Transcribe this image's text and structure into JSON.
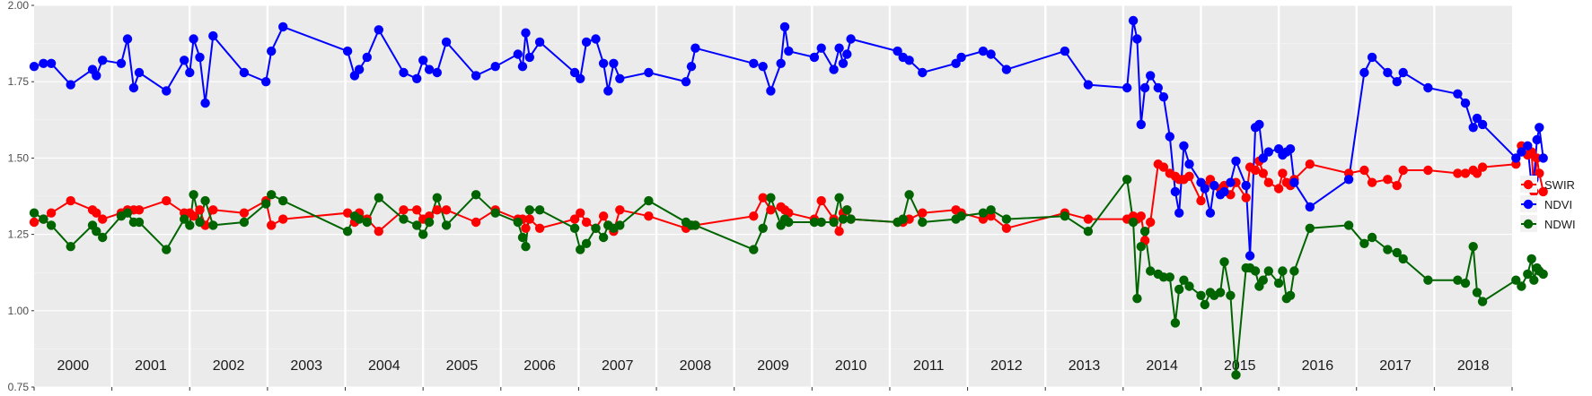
{
  "chart_data": {
    "type": "line",
    "ylim": [
      0.75,
      2.0
    ],
    "y_ticks": [
      "0.75",
      "1.00",
      "1.25",
      "1.50",
      "1.75",
      "2.00"
    ],
    "years": [
      "2000",
      "2001",
      "2002",
      "2003",
      "2004",
      "2005",
      "2006",
      "2007",
      "2008",
      "2009",
      "2010",
      "2011",
      "2012",
      "2013",
      "2014",
      "2015",
      "2016",
      "2017",
      "2018"
    ],
    "x_range": [
      2000.0,
      2019.0
    ],
    "grid": true,
    "legend_position": "right",
    "series": [
      {
        "name": "SWIR",
        "color": "#ff0000",
        "x": [
          2000.0,
          2000.12,
          2000.22,
          2000.47,
          2000.75,
          2000.8,
          2000.88,
          2001.12,
          2001.2,
          2001.28,
          2001.35,
          2001.7,
          2001.93,
          2002.0,
          2002.05,
          2002.13,
          2002.2,
          2002.3,
          2002.7,
          2002.98,
          2003.05,
          2003.2,
          2004.03,
          2004.12,
          2004.18,
          2004.28,
          2004.43,
          2004.75,
          2004.92,
          2005.0,
          2005.08,
          2005.18,
          2005.3,
          2005.68,
          2005.93,
          2006.22,
          2006.28,
          2006.32,
          2006.37,
          2006.5,
          2006.95,
          2007.02,
          2007.1,
          2007.22,
          2007.32,
          2007.38,
          2007.45,
          2007.53,
          2007.9,
          2008.38,
          2008.45,
          2008.5,
          2009.25,
          2009.37,
          2009.47,
          2009.6,
          2009.65,
          2009.7,
          2010.03,
          2010.12,
          2010.28,
          2010.35,
          2010.4,
          2010.45,
          2010.5,
          2011.1,
          2011.17,
          2011.25,
          2011.42,
          2011.85,
          2011.92,
          2012.2,
          2012.3,
          2012.5,
          2013.25,
          2013.55,
          2014.05,
          2014.13,
          2014.18,
          2014.23,
          2014.28,
          2014.35,
          2014.45,
          2014.52,
          2014.6,
          2014.67,
          2014.72,
          2014.78,
          2014.85,
          2015.0,
          2015.05,
          2015.12,
          2015.17,
          2015.25,
          2015.3,
          2015.38,
          2015.45,
          2015.58,
          2015.63,
          2015.7,
          2015.75,
          2015.8,
          2015.87,
          2016.0,
          2016.05,
          2016.1,
          2016.15,
          2016.2,
          2016.4,
          2016.9,
          2017.1,
          2017.2,
          2017.4,
          2017.52,
          2017.6,
          2017.92,
          2018.3,
          2018.4,
          2018.5,
          2018.55,
          2018.62,
          2019.05,
          2019.12,
          2019.2,
          2019.25,
          2019.28,
          2019.32,
          2019.35,
          2019.4
        ],
        "y": [
          1.29,
          1.3,
          1.32,
          1.36,
          1.33,
          1.32,
          1.3,
          1.32,
          1.33,
          1.33,
          1.33,
          1.36,
          1.32,
          1.32,
          1.31,
          1.33,
          1.28,
          1.33,
          1.32,
          1.36,
          1.28,
          1.3,
          1.32,
          1.29,
          1.32,
          1.3,
          1.26,
          1.33,
          1.33,
          1.3,
          1.31,
          1.33,
          1.33,
          1.29,
          1.33,
          1.3,
          1.3,
          1.27,
          1.3,
          1.27,
          1.3,
          1.32,
          1.29,
          1.27,
          1.31,
          1.28,
          1.26,
          1.33,
          1.31,
          1.27,
          1.28,
          1.28,
          1.31,
          1.37,
          1.33,
          1.34,
          1.33,
          1.32,
          1.3,
          1.36,
          1.3,
          1.26,
          1.32,
          1.33,
          1.3,
          1.29,
          1.29,
          1.3,
          1.32,
          1.33,
          1.32,
          1.3,
          1.31,
          1.27,
          1.32,
          1.3,
          1.3,
          1.31,
          1.3,
          1.31,
          1.23,
          1.29,
          1.48,
          1.47,
          1.45,
          1.44,
          1.43,
          1.43,
          1.44,
          1.36,
          1.41,
          1.43,
          1.41,
          1.4,
          1.41,
          1.38,
          1.42,
          1.37,
          1.47,
          1.46,
          1.49,
          1.45,
          1.42,
          1.4,
          1.45,
          1.42,
          1.41,
          1.43,
          1.48,
          1.45,
          1.46,
          1.42,
          1.43,
          1.41,
          1.46,
          1.46,
          1.45,
          1.45,
          1.46,
          1.45,
          1.47,
          1.48,
          1.54,
          1.51,
          1.52,
          1.39,
          1.5,
          1.45,
          1.39
        ]
      },
      {
        "name": "NDVI",
        "color": "#0000ff",
        "x": [
          2000.0,
          2000.12,
          2000.22,
          2000.47,
          2000.75,
          2000.8,
          2000.88,
          2001.12,
          2001.2,
          2001.28,
          2001.35,
          2001.7,
          2001.93,
          2002.0,
          2002.05,
          2002.13,
          2002.2,
          2002.3,
          2002.7,
          2002.98,
          2003.05,
          2003.2,
          2004.03,
          2004.12,
          2004.18,
          2004.28,
          2004.43,
          2004.75,
          2004.92,
          2005.0,
          2005.08,
          2005.18,
          2005.3,
          2005.68,
          2005.93,
          2006.22,
          2006.28,
          2006.32,
          2006.37,
          2006.5,
          2006.95,
          2007.02,
          2007.1,
          2007.22,
          2007.32,
          2007.38,
          2007.45,
          2007.53,
          2007.9,
          2008.38,
          2008.45,
          2008.5,
          2009.25,
          2009.37,
          2009.47,
          2009.6,
          2009.65,
          2009.7,
          2010.03,
          2010.12,
          2010.28,
          2010.35,
          2010.4,
          2010.45,
          2010.5,
          2011.1,
          2011.17,
          2011.25,
          2011.42,
          2011.85,
          2011.92,
          2012.2,
          2012.3,
          2012.5,
          2013.25,
          2013.55,
          2014.05,
          2014.13,
          2014.18,
          2014.23,
          2014.28,
          2014.35,
          2014.45,
          2014.52,
          2014.6,
          2014.67,
          2014.72,
          2014.78,
          2014.85,
          2015.0,
          2015.05,
          2015.12,
          2015.17,
          2015.25,
          2015.3,
          2015.38,
          2015.45,
          2015.58,
          2015.63,
          2015.7,
          2015.75,
          2015.8,
          2015.87,
          2016.0,
          2016.05,
          2016.1,
          2016.15,
          2016.2,
          2016.4,
          2016.9,
          2017.1,
          2017.2,
          2017.4,
          2017.52,
          2017.6,
          2017.92,
          2018.3,
          2018.4,
          2018.5,
          2018.55,
          2018.62,
          2019.05,
          2019.12,
          2019.2,
          2019.25,
          2019.28,
          2019.32,
          2019.35,
          2019.4
        ],
        "y": [
          1.8,
          1.81,
          1.81,
          1.74,
          1.79,
          1.77,
          1.82,
          1.81,
          1.89,
          1.73,
          1.78,
          1.72,
          1.82,
          1.78,
          1.89,
          1.83,
          1.68,
          1.9,
          1.78,
          1.75,
          1.85,
          1.93,
          1.85,
          1.77,
          1.79,
          1.83,
          1.92,
          1.78,
          1.76,
          1.82,
          1.79,
          1.78,
          1.88,
          1.77,
          1.8,
          1.84,
          1.8,
          1.91,
          1.83,
          1.88,
          1.78,
          1.76,
          1.88,
          1.89,
          1.81,
          1.72,
          1.81,
          1.76,
          1.78,
          1.75,
          1.8,
          1.86,
          1.81,
          1.8,
          1.72,
          1.81,
          1.93,
          1.85,
          1.83,
          1.86,
          1.79,
          1.86,
          1.81,
          1.84,
          1.89,
          1.85,
          1.83,
          1.82,
          1.78,
          1.81,
          1.83,
          1.85,
          1.84,
          1.79,
          1.85,
          1.74,
          1.73,
          1.95,
          1.89,
          1.61,
          1.73,
          1.77,
          1.73,
          1.7,
          1.57,
          1.39,
          1.32,
          1.54,
          1.48,
          1.42,
          1.4,
          1.32,
          1.41,
          1.38,
          1.39,
          1.42,
          1.49,
          1.41,
          1.18,
          1.6,
          1.61,
          1.5,
          1.52,
          1.53,
          1.51,
          1.52,
          1.53,
          1.42,
          1.34,
          1.43,
          1.78,
          1.83,
          1.78,
          1.75,
          1.78,
          1.73,
          1.71,
          1.68,
          1.6,
          1.63,
          1.61,
          1.5,
          1.52,
          1.54,
          1.41,
          1.43,
          1.56,
          1.6,
          1.5
        ]
      },
      {
        "name": "NDWI",
        "color": "#006400",
        "x": [
          2000.0,
          2000.12,
          2000.22,
          2000.47,
          2000.75,
          2000.8,
          2000.88,
          2001.12,
          2001.2,
          2001.28,
          2001.35,
          2001.7,
          2001.93,
          2002.0,
          2002.05,
          2002.13,
          2002.2,
          2002.3,
          2002.7,
          2002.98,
          2003.05,
          2003.2,
          2004.03,
          2004.12,
          2004.18,
          2004.28,
          2004.43,
          2004.75,
          2004.92,
          2005.0,
          2005.08,
          2005.18,
          2005.3,
          2005.68,
          2005.93,
          2006.22,
          2006.28,
          2006.32,
          2006.37,
          2006.5,
          2006.95,
          2007.02,
          2007.1,
          2007.22,
          2007.32,
          2007.38,
          2007.45,
          2007.53,
          2007.9,
          2008.38,
          2008.45,
          2008.5,
          2009.25,
          2009.37,
          2009.47,
          2009.6,
          2009.65,
          2009.7,
          2010.03,
          2010.12,
          2010.28,
          2010.35,
          2010.4,
          2010.45,
          2010.5,
          2011.1,
          2011.17,
          2011.25,
          2011.42,
          2011.85,
          2011.92,
          2012.2,
          2012.3,
          2012.5,
          2013.25,
          2013.55,
          2014.05,
          2014.13,
          2014.18,
          2014.23,
          2014.28,
          2014.35,
          2014.45,
          2014.52,
          2014.6,
          2014.67,
          2014.72,
          2014.78,
          2014.85,
          2015.0,
          2015.05,
          2015.12,
          2015.17,
          2015.25,
          2015.3,
          2015.38,
          2015.45,
          2015.58,
          2015.63,
          2015.7,
          2015.75,
          2015.8,
          2015.87,
          2016.0,
          2016.05,
          2016.1,
          2016.15,
          2016.2,
          2016.4,
          2016.9,
          2017.1,
          2017.2,
          2017.4,
          2017.52,
          2017.6,
          2017.92,
          2018.3,
          2018.4,
          2018.5,
          2018.55,
          2018.62,
          2019.05,
          2019.12,
          2019.2,
          2019.25,
          2019.28,
          2019.32,
          2019.35,
          2019.4
        ],
        "y": [
          1.32,
          1.3,
          1.28,
          1.21,
          1.28,
          1.26,
          1.24,
          1.31,
          1.32,
          1.29,
          1.29,
          1.2,
          1.3,
          1.28,
          1.38,
          1.29,
          1.36,
          1.28,
          1.29,
          1.35,
          1.38,
          1.36,
          1.26,
          1.31,
          1.3,
          1.29,
          1.37,
          1.3,
          1.28,
          1.25,
          1.29,
          1.37,
          1.28,
          1.38,
          1.32,
          1.29,
          1.24,
          1.21,
          1.33,
          1.33,
          1.27,
          1.2,
          1.22,
          1.27,
          1.24,
          1.28,
          1.27,
          1.28,
          1.36,
          1.29,
          1.28,
          1.28,
          1.2,
          1.27,
          1.37,
          1.28,
          1.3,
          1.29,
          1.29,
          1.29,
          1.29,
          1.37,
          1.3,
          1.33,
          1.3,
          1.29,
          1.3,
          1.38,
          1.29,
          1.3,
          1.31,
          1.32,
          1.33,
          1.3,
          1.31,
          1.26,
          1.43,
          1.29,
          1.04,
          1.21,
          1.26,
          1.13,
          1.12,
          1.11,
          1.11,
          0.96,
          1.07,
          1.1,
          1.08,
          1.05,
          1.02,
          1.06,
          1.05,
          1.06,
          1.16,
          1.05,
          0.79,
          1.14,
          1.14,
          1.13,
          1.08,
          1.1,
          1.13,
          1.09,
          1.13,
          1.04,
          1.05,
          1.13,
          1.27,
          1.28,
          1.22,
          1.24,
          1.2,
          1.19,
          1.17,
          1.1,
          1.1,
          1.09,
          1.21,
          1.06,
          1.03,
          1.1,
          1.08,
          1.12,
          1.17,
          1.1,
          1.14,
          1.13,
          1.12
        ]
      }
    ]
  }
}
